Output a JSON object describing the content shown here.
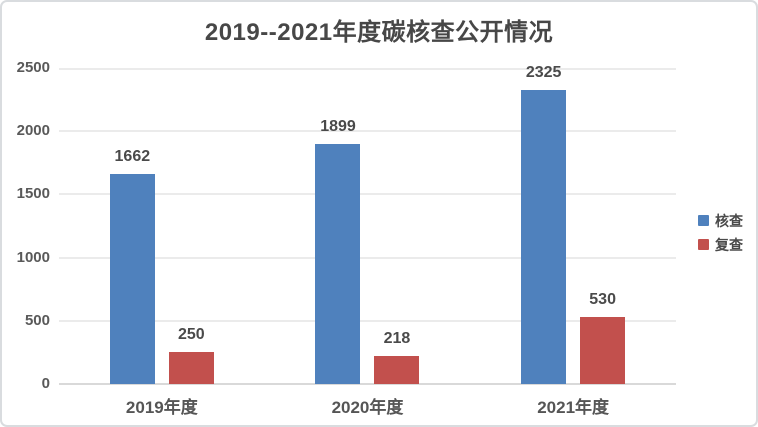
{
  "chart_data": {
    "type": "bar",
    "title": "2019--2021年度碳核查公开情况",
    "categories": [
      "2019年度",
      "2020年度",
      "2021年度"
    ],
    "series": [
      {
        "name": "核查",
        "color": "#4f81bd",
        "values": [
          1662,
          1899,
          2325
        ]
      },
      {
        "name": "复查",
        "color": "#c2504d",
        "values": [
          250,
          218,
          530
        ]
      }
    ],
    "ylim": [
      0,
      2500
    ],
    "yticks": [
      0,
      500,
      1000,
      1500,
      2000,
      2500
    ],
    "grid": true,
    "bar_labels": true,
    "legend_position": "right"
  },
  "colors": {
    "title_text": "#474747",
    "axis_text": "#595959",
    "value_label_text": "#4a4a4a",
    "category_text": "#555555",
    "gridline": "#ebebeb",
    "baseline": "#d9d9d9",
    "frame_border": "#d9dcdf",
    "background": "#ffffff"
  }
}
